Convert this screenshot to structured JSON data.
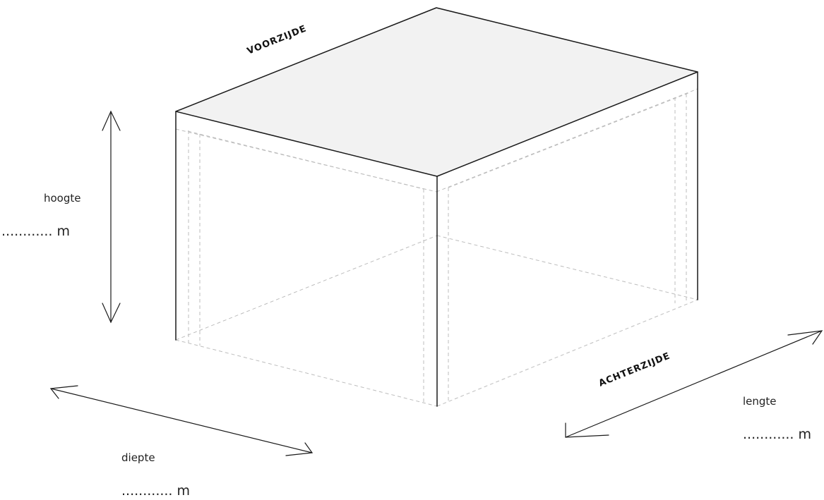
{
  "sides": {
    "front": "VOORZIJDE",
    "back": "ACHTERZIJDE"
  },
  "dimensions": {
    "height": {
      "label": "hoogte",
      "value": "............ m"
    },
    "depth": {
      "label": "diepte",
      "value": "............ m"
    },
    "length": {
      "label": "lengte",
      "value": "............ m"
    }
  },
  "colors": {
    "roof": "#f2f2f2",
    "edge": "#1a1a1a",
    "hidden": "#bdbdbd"
  }
}
